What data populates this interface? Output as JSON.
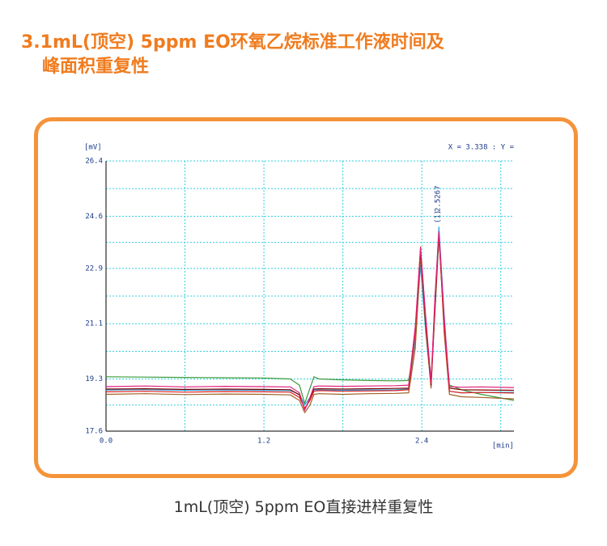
{
  "header": {
    "title": [
      "3.1mL(顶空) 5ppm EO环氧乙烷标准工作液时间及",
      "峰面积重复性"
    ]
  },
  "chart_data": {
    "type": "line",
    "ylabel": "[mV]",
    "xlabel": "[min]",
    "readout": "X = 3.338 : Y =",
    "annotations": [
      "(1)",
      "2.5267"
    ],
    "xlim": [
      0,
      3.1
    ],
    "ylim": [
      17.6,
      26.4
    ],
    "xticks": [
      {
        "value": 0,
        "label": "0.0"
      },
      1.2,
      2.4
    ],
    "yticks": [
      17.6,
      19.3,
      21.1,
      22.9,
      24.6,
      26.4
    ],
    "grid": true,
    "x": [
      0,
      0.3,
      0.6,
      0.9,
      1.2,
      1.4,
      1.47,
      1.51,
      1.55,
      1.58,
      1.62,
      1.8,
      2.0,
      2.2,
      2.3,
      2.35,
      2.39,
      2.43,
      2.47,
      2.5,
      2.53,
      2.57,
      2.61,
      2.7,
      2.85,
      3.1
    ],
    "series": [
      {
        "color": "#3a9a3a",
        "values": [
          19.37,
          19.36,
          19.35,
          19.34,
          19.33,
          19.3,
          19.1,
          18.5,
          19.0,
          19.37,
          19.3,
          19.27,
          19.25,
          19.24,
          19.25,
          20.5,
          23.4,
          21.0,
          19.3,
          21.5,
          23.9,
          21.2,
          19.1,
          18.95,
          18.8,
          18.6
        ]
      },
      {
        "color": "#30a8e0",
        "values": [
          18.94,
          18.95,
          18.93,
          18.94,
          18.93,
          18.92,
          18.8,
          18.45,
          18.7,
          18.95,
          18.94,
          18.93,
          18.94,
          18.95,
          18.97,
          20.6,
          23.0,
          20.8,
          19.1,
          21.9,
          24.25,
          21.4,
          18.9,
          18.85,
          18.86,
          18.87
        ]
      },
      {
        "color": "#a0602a",
        "values": [
          18.8,
          18.82,
          18.79,
          18.81,
          18.8,
          18.78,
          18.6,
          18.2,
          18.45,
          18.8,
          18.82,
          18.8,
          18.82,
          18.83,
          18.85,
          20.3,
          23.3,
          20.9,
          19.0,
          21.6,
          24.05,
          20.8,
          18.8,
          18.72,
          18.7,
          18.65
        ]
      },
      {
        "color": "#800000",
        "values": [
          18.97,
          18.98,
          18.96,
          18.97,
          18.96,
          18.95,
          18.78,
          18.3,
          18.65,
          18.97,
          18.98,
          18.97,
          18.98,
          18.99,
          19.0,
          20.9,
          23.5,
          21.1,
          19.1,
          21.7,
          24.0,
          21.1,
          19.0,
          18.95,
          18.94,
          18.93
        ]
      },
      {
        "color": "#e02020",
        "values": [
          18.88,
          18.9,
          18.87,
          18.89,
          18.88,
          18.87,
          18.7,
          18.35,
          18.6,
          18.9,
          18.92,
          18.9,
          18.91,
          18.92,
          18.95,
          20.8,
          23.6,
          21.2,
          19.15,
          21.8,
          24.0,
          21.0,
          18.9,
          18.85,
          18.86,
          18.84
        ]
      },
      {
        "color": "#e0207a",
        "values": [
          19.05,
          19.07,
          19.04,
          19.06,
          19.05,
          19.04,
          18.85,
          18.28,
          18.7,
          19.05,
          19.07,
          19.06,
          19.07,
          19.08,
          19.1,
          21.0,
          23.55,
          21.3,
          19.2,
          22.0,
          24.1,
          21.3,
          19.05,
          19.03,
          19.04,
          19.02
        ]
      }
    ]
  },
  "caption": "1mL(顶空) 5ppm EO直接进样重复性"
}
